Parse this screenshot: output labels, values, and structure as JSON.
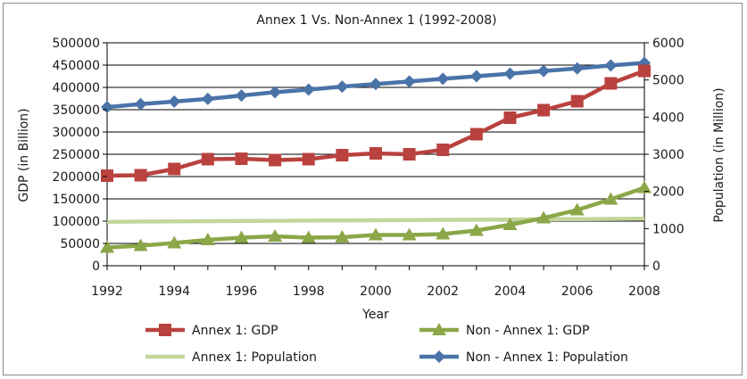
{
  "chart_data": {
    "type": "line",
    "title": "Annex 1 Vs. Non-Annex 1 (1992-2008)",
    "xlabel": "Year",
    "ylabel": "GDP (in Billion)",
    "y2label": "Population (in Million)",
    "x": [
      1992,
      1993,
      1994,
      1995,
      1996,
      1997,
      1998,
      1999,
      2000,
      2001,
      2002,
      2003,
      2004,
      2005,
      2006,
      2007,
      2008
    ],
    "x_ticks": [
      "1992",
      "1994",
      "1996",
      "1998",
      "2000",
      "2002",
      "2004",
      "2006",
      "2008"
    ],
    "ylim": [
      0,
      500000
    ],
    "y_ticks": [
      "0",
      "50000",
      "100000",
      "150000",
      "200000",
      "250000",
      "300000",
      "350000",
      "400000",
      "450000",
      "500000"
    ],
    "y2lim": [
      0,
      6000
    ],
    "y2_ticks": [
      "0",
      "1000",
      "2000",
      "3000",
      "4000",
      "5000",
      "6000"
    ],
    "grid": true,
    "legend_position": "bottom",
    "series": [
      {
        "name": "Annex 1: GDP",
        "axis": "left",
        "color": "#b9423e",
        "marker": "square",
        "values": [
          202000,
          203000,
          217000,
          239000,
          240000,
          237000,
          239000,
          248000,
          252000,
          250000,
          260000,
          295000,
          332000,
          349000,
          369000,
          409000,
          437000
        ]
      },
      {
        "name": "Non - Annex 1: GDP",
        "axis": "left",
        "color": "#8ba748",
        "marker": "triangle",
        "values": [
          41000,
          45000,
          51000,
          58000,
          63000,
          66000,
          63000,
          64000,
          69000,
          69000,
          71000,
          79000,
          92000,
          107000,
          125000,
          149000,
          175000
        ]
      },
      {
        "name": "Annex 1: Population",
        "axis": "right",
        "color": "#c3d69b",
        "marker": "none",
        "values": [
          1180,
          1190,
          1195,
          1200,
          1205,
          1210,
          1215,
          1220,
          1225,
          1230,
          1235,
          1240,
          1245,
          1250,
          1255,
          1260,
          1265
        ]
      },
      {
        "name": "Non - Annex 1: Population",
        "axis": "right",
        "color": "#4a73a8",
        "marker": "diamond",
        "values": [
          4270,
          4350,
          4420,
          4490,
          4580,
          4670,
          4740,
          4820,
          4890,
          4960,
          5030,
          5100,
          5170,
          5240,
          5310,
          5390,
          5460
        ]
      }
    ]
  }
}
